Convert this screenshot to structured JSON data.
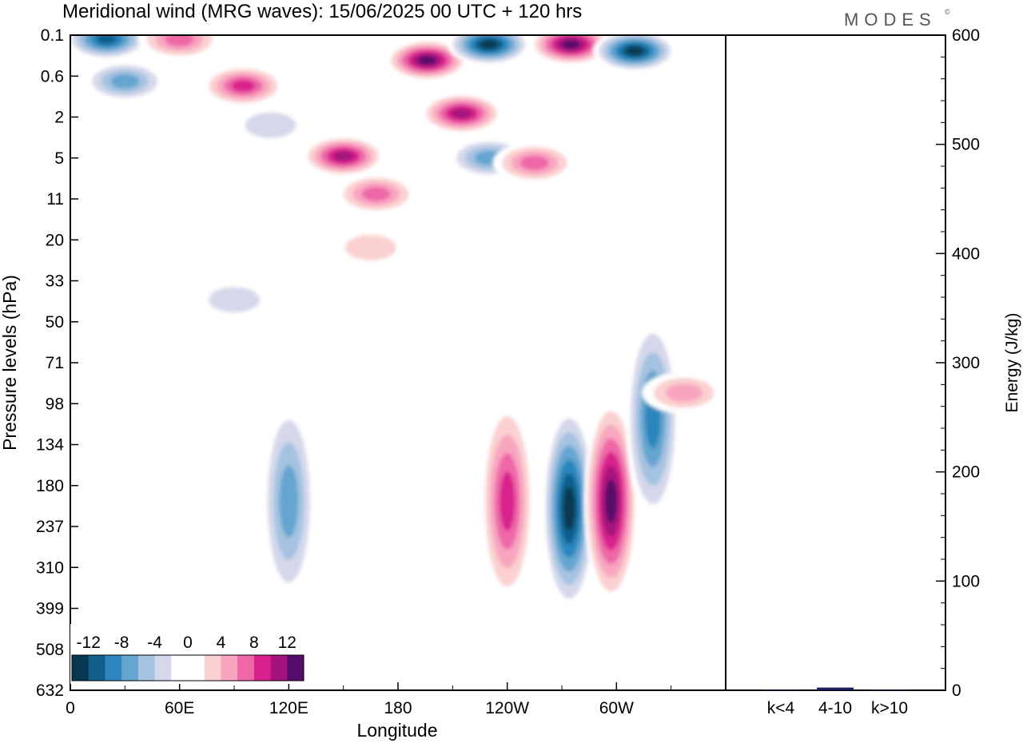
{
  "title": "Meridional wind (MRG waves):  15/06/2025  00 UTC  + 120 hrs",
  "logo": "MODES",
  "logo_mark": "©",
  "chart_data": {
    "type": "heatmap",
    "xlabel": "Longitude",
    "ylabel": "Pressure levels (hPa)",
    "x_ticks": [
      "0",
      "60E",
      "120E",
      "180",
      "120W",
      "60W"
    ],
    "y_ticks": [
      "0.1",
      "0.6",
      "2",
      "5",
      "11",
      "20",
      "33",
      "50",
      "71",
      "98",
      "134",
      "180",
      "237",
      "310",
      "399",
      "508",
      "632"
    ],
    "colorbar": {
      "labels": [
        "-12",
        "-8",
        "-4",
        "0",
        "4",
        "8",
        "12"
      ],
      "levels": [
        -14,
        -12,
        -10,
        -8,
        -6,
        -4,
        -2,
        0,
        2,
        4,
        6,
        8,
        10,
        12,
        14
      ],
      "colors": [
        "#08384f",
        "#11608c",
        "#2c86bd",
        "#65a5cf",
        "#a4c3e1",
        "#d4d8ea",
        "#ffffff",
        "#ffffff",
        "#fbd0d0",
        "#f8a6c0",
        "#ee68a8",
        "#d8218c",
        "#a4137c",
        "#560c6b"
      ]
    },
    "series_blobs": [
      {
        "lon": 20,
        "lev": 0.12,
        "v": -12
      },
      {
        "lon": 60,
        "lev": 0.12,
        "v": 8
      },
      {
        "lon": 30,
        "lev": 0.7,
        "v": -8
      },
      {
        "lon": 95,
        "lev": 0.8,
        "v": 10
      },
      {
        "lon": 110,
        "lev": 2.4,
        "v": -4
      },
      {
        "lon": 150,
        "lev": 4.8,
        "v": 12
      },
      {
        "lon": 168,
        "lev": 10,
        "v": 8
      },
      {
        "lon": 165,
        "lev": 22,
        "v": 4
      },
      {
        "lon": 196,
        "lev": 0.3,
        "v": 14
      },
      {
        "lon": 230,
        "lev": 0.15,
        "v": -14
      },
      {
        "lon": 215,
        "lev": 1.8,
        "v": 12
      },
      {
        "lon": 230,
        "lev": 5,
        "v": -8
      },
      {
        "lon": 275,
        "lev": 0.15,
        "v": 14
      },
      {
        "lon": 310,
        "lev": 0.2,
        "v": -14
      },
      {
        "lon": 255,
        "lev": 5.5,
        "v": 8
      },
      {
        "lon": 90,
        "lev": 40,
        "v": -4
      },
      {
        "lon": 120,
        "lev": 200,
        "v": -8
      },
      {
        "lon": 240,
        "lev": 200,
        "v": 10
      },
      {
        "lon": 274,
        "lev": 210,
        "v": -14
      },
      {
        "lon": 297,
        "lev": 200,
        "v": 14
      },
      {
        "lon": 320,
        "lev": 110,
        "v": -10
      },
      {
        "lon": 337,
        "lev": 90,
        "v": 6
      }
    ],
    "energy_axis": {
      "label": "Energy (J/kg)",
      "ylim": [
        0,
        600
      ],
      "ticks": [
        "0",
        "100",
        "200",
        "300",
        "400",
        "500",
        "600"
      ]
    },
    "energy_bars": {
      "type": "bar",
      "categories": [
        "k<4",
        "4-10",
        "k>10"
      ],
      "values": [
        0.5,
        2.5,
        0.5
      ]
    }
  }
}
